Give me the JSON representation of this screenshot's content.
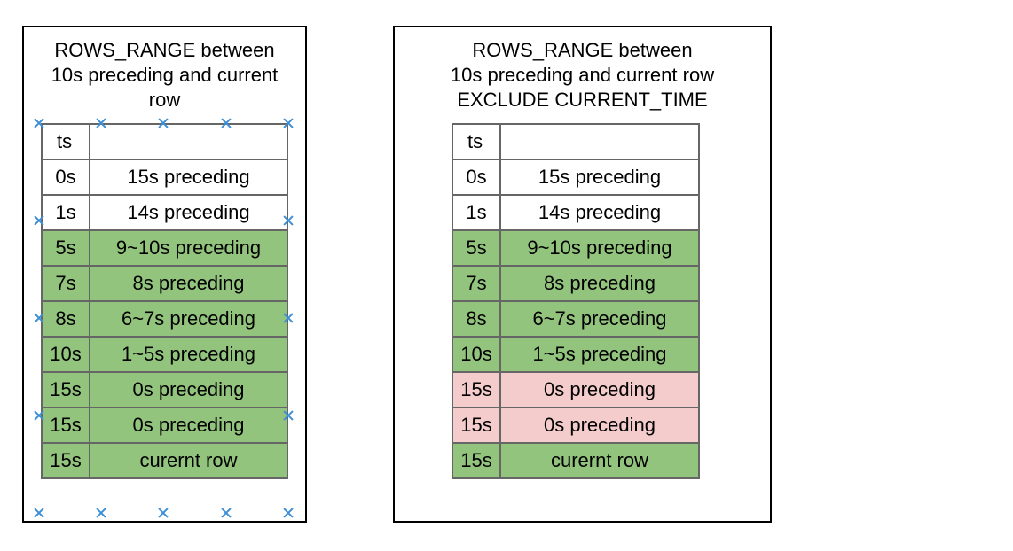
{
  "panels": [
    {
      "title": "ROWS_RANGE between\n10s preceding and current\nrow",
      "rows": [
        {
          "ts": "ts",
          "desc": "",
          "state": "white"
        },
        {
          "ts": "0s",
          "desc": "15s preceding",
          "state": "white"
        },
        {
          "ts": "1s",
          "desc": "14s preceding",
          "state": "white"
        },
        {
          "ts": "5s",
          "desc": "9~10s preceding",
          "state": "green"
        },
        {
          "ts": "7s",
          "desc": "8s preceding",
          "state": "green"
        },
        {
          "ts": "8s",
          "desc": "6~7s preceding",
          "state": "green"
        },
        {
          "ts": "10s",
          "desc": "1~5s preceding",
          "state": "green"
        },
        {
          "ts": "15s",
          "desc": "0s preceding",
          "state": "green"
        },
        {
          "ts": "15s",
          "desc": "0s preceding",
          "state": "green"
        },
        {
          "ts": "15s",
          "desc": "curernt row",
          "state": "green"
        }
      ]
    },
    {
      "title": "ROWS_RANGE between\n10s preceding and current row\nEXCLUDE CURRENT_TIME",
      "rows": [
        {
          "ts": "ts",
          "desc": "",
          "state": "white"
        },
        {
          "ts": "0s",
          "desc": "15s preceding",
          "state": "white"
        },
        {
          "ts": "1s",
          "desc": "14s preceding",
          "state": "white"
        },
        {
          "ts": "5s",
          "desc": "9~10s preceding",
          "state": "green"
        },
        {
          "ts": "7s",
          "desc": "8s preceding",
          "state": "green"
        },
        {
          "ts": "8s",
          "desc": "6~7s preceding",
          "state": "green"
        },
        {
          "ts": "10s",
          "desc": "1~5s preceding",
          "state": "green"
        },
        {
          "ts": "15s",
          "desc": "0s preceding",
          "state": "red"
        },
        {
          "ts": "15s",
          "desc": "0s preceding",
          "state": "red"
        },
        {
          "ts": "15s",
          "desc": "curernt row",
          "state": "green"
        }
      ]
    }
  ],
  "colors": {
    "included": "#93c47d",
    "excluded": "#f4cccc",
    "outside": "#ffffff",
    "selection_marker": "#3d8fd6"
  }
}
